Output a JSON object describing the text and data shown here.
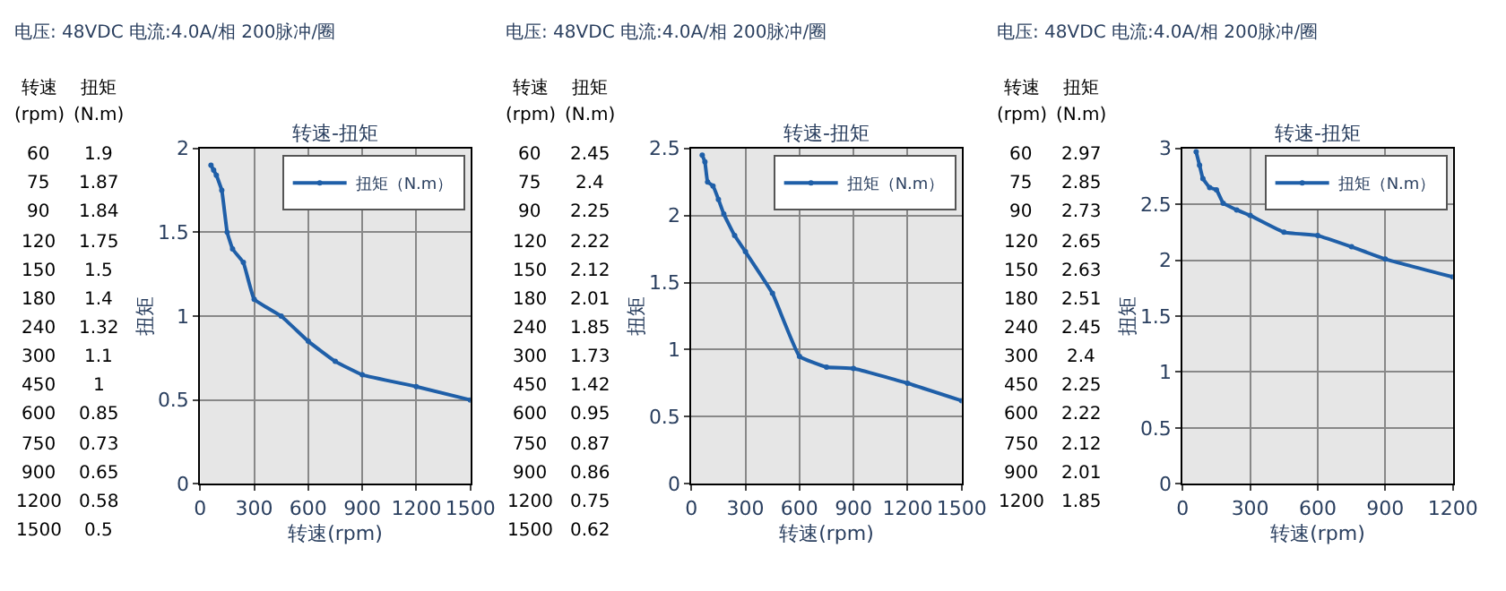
{
  "chart_data": [
    {
      "type": "other",
      "annotations": [
        "转速",
        "扭矩",
        "(rpm)",
        "(N.m)",
        "60",
        "1.9",
        "75",
        "1.87",
        "90",
        "1.84",
        "120",
        "1.75",
        "150",
        "1.5",
        "180",
        "1.4",
        "240",
        "1.32",
        "300",
        "1.1",
        "450",
        "1",
        "600",
        "0.85",
        "750",
        "0.73",
        "900",
        "0.65",
        "1200",
        "0.58",
        "1500",
        "0.5"
      ]
    },
    {
      "type": "line",
      "subtitle": "电压: 48VDC 电流:4.0A/相 200脉冲/圈",
      "title": "转速-扭矩",
      "xlabel": "转速(rpm)",
      "ylabel": "扭矩",
      "x": [
        60,
        75,
        90,
        120,
        150,
        180,
        240,
        300,
        450,
        600,
        750,
        900,
        1200,
        1500
      ],
      "series": [
        {
          "name": "扭矩（N.m）",
          "color": "#1f5fa8",
          "values": [
            1.9,
            1.87,
            1.84,
            1.75,
            1.5,
            1.4,
            1.32,
            1.1,
            1,
            0.85,
            0.73,
            0.65,
            0.58,
            0.5
          ]
        }
      ],
      "xlim": [
        0,
        1500
      ],
      "xticks": [
        0,
        300,
        600,
        900,
        1200,
        1500
      ],
      "ylim": [
        0,
        2
      ],
      "yticks": [
        0,
        0.5,
        1,
        1.5,
        2
      ],
      "grid": true,
      "legend": "top right",
      "marker": "circle"
    },
    {
      "type": "other",
      "annotations": [
        "转速",
        "扭矩",
        "(rpm)",
        "(N.m)",
        "60",
        "2.45",
        "75",
        "2.4",
        "90",
        "2.25",
        "120",
        "2.22",
        "150",
        "2.12",
        "180",
        "2.01",
        "240",
        "1.85",
        "300",
        "1.73",
        "450",
        "1.42",
        "600",
        "0.95",
        "750",
        "0.87",
        "900",
        "0.86",
        "1200",
        "0.75",
        "1500",
        "0.62"
      ]
    },
    {
      "type": "line",
      "subtitle": "电压: 48VDC 电流:4.0A/相 200脉冲/圈",
      "title": "转速-扭矩",
      "xlabel": "转速(rpm)",
      "ylabel": "扭矩",
      "x": [
        60,
        75,
        90,
        120,
        150,
        180,
        240,
        300,
        450,
        600,
        750,
        900,
        1200,
        1500
      ],
      "series": [
        {
          "name": "扭矩（N.m）",
          "color": "#1f5fa8",
          "values": [
            2.45,
            2.4,
            2.25,
            2.22,
            2.12,
            2.01,
            1.85,
            1.73,
            1.42,
            0.95,
            0.87,
            0.86,
            0.75,
            0.62
          ]
        }
      ],
      "xlim": [
        0,
        1500
      ],
      "xticks": [
        0,
        300,
        600,
        900,
        1200,
        1500
      ],
      "ylim": [
        0,
        2.5
      ],
      "yticks": [
        0,
        0.5,
        1,
        1.5,
        2,
        2.5
      ],
      "grid": true,
      "legend": "top right",
      "marker": "circle"
    },
    {
      "type": "other",
      "annotations": [
        "转速",
        "扭矩",
        "(rpm)",
        "(N.m)",
        "60",
        "2.97",
        "75",
        "2.85",
        "90",
        "2.73",
        "120",
        "2.65",
        "150",
        "2.63",
        "180",
        "2.51",
        "240",
        "2.45",
        "300",
        "2.4",
        "450",
        "2.25",
        "600",
        "2.22",
        "750",
        "2.12",
        "900",
        "2.01",
        "1200",
        "1.85"
      ]
    },
    {
      "type": "line",
      "subtitle": "电压: 48VDC 电流:4.0A/相 200脉冲/圈",
      "title": "转速-扭矩",
      "xlabel": "转速(rpm)",
      "ylabel": "扭矩",
      "x": [
        60,
        75,
        90,
        120,
        150,
        180,
        240,
        300,
        450,
        600,
        750,
        900,
        1200
      ],
      "series": [
        {
          "name": "扭矩（N.m）",
          "color": "#1f5fa8",
          "values": [
            2.97,
            2.85,
            2.73,
            2.65,
            2.63,
            2.51,
            2.45,
            2.4,
            2.25,
            2.22,
            2.12,
            2.01,
            1.85
          ]
        }
      ],
      "xlim": [
        0,
        1200
      ],
      "xticks": [
        0,
        300,
        600,
        900,
        1200
      ],
      "ylim": [
        0,
        3
      ],
      "yticks": [
        0,
        0.5,
        1,
        1.5,
        2,
        2.5,
        3
      ],
      "grid": true,
      "legend": "top right",
      "marker": "circle"
    }
  ]
}
